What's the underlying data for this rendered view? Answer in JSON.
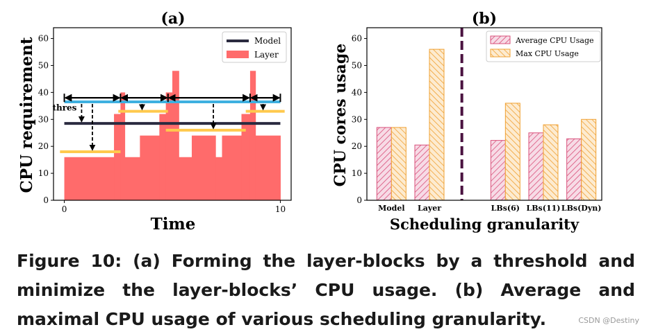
{
  "caption": "Figure 10:  (a) Forming the layer-blocks by a threshold and minimize the layer-blocks’ CPU usage. (b) Average and maximal CPU usage of various scheduling granularity.",
  "watermark": "CSDN @Destiny",
  "colors": {
    "model": "#2b2b40",
    "layer": "#ff6b6b",
    "blue": "#3fb0e0",
    "yellow": "#ffc94d",
    "avg": "#d94f7a",
    "max": "#f0a030",
    "divider": "#4a1240"
  },
  "chart_data": [
    {
      "type": "area",
      "title": "(a)",
      "xlabel": "Time",
      "ylabel": "CPU requirement",
      "xlim": [
        -0.5,
        10.5
      ],
      "ylim": [
        0,
        64
      ],
      "xticks": [
        0,
        10
      ],
      "yticks": [
        0,
        10,
        20,
        30,
        40,
        50,
        60
      ],
      "legend_position": "top-right",
      "series": [
        {
          "name": "Model",
          "kind": "line",
          "x": [
            0,
            10
          ],
          "values": [
            28.5,
            28.5
          ]
        },
        {
          "name": "Layer",
          "kind": "step",
          "steps": [
            [
              0.0,
              2.3,
              16
            ],
            [
              2.3,
              2.6,
              32
            ],
            [
              2.6,
              2.8,
              40
            ],
            [
              2.8,
              3.5,
              16
            ],
            [
              3.5,
              4.4,
              24
            ],
            [
              4.4,
              4.7,
              32
            ],
            [
              4.7,
              5.0,
              40
            ],
            [
              5.0,
              5.3,
              48
            ],
            [
              5.3,
              5.9,
              16
            ],
            [
              5.9,
              7.0,
              24
            ],
            [
              7.0,
              7.3,
              16
            ],
            [
              7.3,
              8.2,
              24
            ],
            [
              8.2,
              8.6,
              32
            ],
            [
              8.6,
              8.85,
              48
            ],
            [
              8.85,
              10.0,
              24
            ]
          ]
        }
      ],
      "annotations": {
        "threshold_label": "thres",
        "blue_line": {
          "x": [
            0,
            10
          ],
          "y": 36.5
        },
        "yellow_segments": [
          [
            -0.2,
            2.6,
            18
          ],
          [
            2.5,
            4.8,
            33
          ],
          [
            4.7,
            8.4,
            26
          ],
          [
            8.4,
            10.2,
            33
          ]
        ],
        "horizontal_arrows": [
          [
            0,
            2.6,
            38
          ],
          [
            2.6,
            4.8,
            38
          ],
          [
            4.8,
            8.6,
            38
          ],
          [
            8.6,
            10,
            38
          ]
        ],
        "vertical_arrows": [
          [
            0.8,
            36.5,
            28.5
          ],
          [
            1.3,
            36.5,
            18
          ],
          [
            3.6,
            36.5,
            33
          ],
          [
            6.9,
            36.5,
            26
          ],
          [
            9.2,
            36.5,
            33
          ]
        ]
      }
    },
    {
      "type": "bar",
      "title": "(b)",
      "xlabel": "Scheduling granularity",
      "ylabel": "CPU cores usage",
      "ylim": [
        0,
        64
      ],
      "yticks": [
        0,
        10,
        20,
        30,
        40,
        50,
        60
      ],
      "categories": [
        "Model",
        "Layer",
        "",
        "LBs(6)",
        "LBs(11)",
        "LBs(Dyn)"
      ],
      "legend_position": "top-right",
      "series": [
        {
          "name": "Average CPU Usage",
          "values": [
            27,
            20.5,
            0,
            22.2,
            25,
            22.8
          ]
        },
        {
          "name": "Max CPU Usage",
          "values": [
            27,
            56,
            0,
            36,
            28,
            30
          ]
        }
      ]
    }
  ]
}
